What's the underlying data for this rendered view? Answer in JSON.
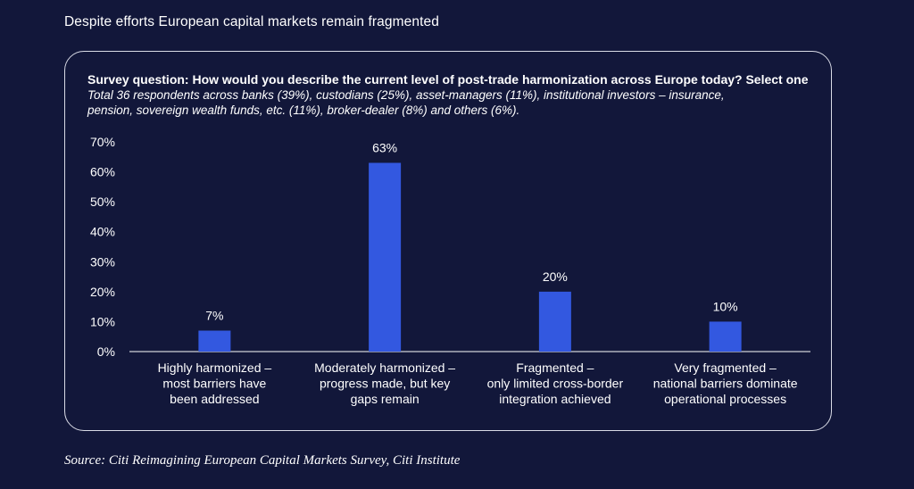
{
  "page_title": "Despite efforts European capital markets remain fragmented",
  "question": "Survey question: How would you describe the current level of post-trade harmonization across Europe today? Select one",
  "respondents_line1": "Total 36 respondents across banks (39%), custodians (25%), asset-managers (11%), institutional investors – insurance,",
  "respondents_line2": "pension, sovereign wealth funds, etc. (11%), broker-dealer (8%) and others (6%).",
  "source": "Source: Citi Reimagining European Capital Markets Survey, Citi Institute",
  "colors": {
    "background": "#12173a",
    "bar": "#3358e0",
    "axis": "#ffffff",
    "text": "#ffffff"
  },
  "chart_data": {
    "type": "bar",
    "title": "Survey question: How would you describe the current level of post-trade harmonization across Europe today? Select one",
    "xlabel": "",
    "ylabel": "",
    "ylim": [
      0,
      70
    ],
    "yticks": [
      0,
      10,
      20,
      30,
      40,
      50,
      60,
      70
    ],
    "ytick_labels": [
      "0%",
      "10%",
      "20%",
      "30%",
      "40%",
      "50%",
      "60%",
      "70%"
    ],
    "grid": false,
    "categories": [
      [
        "Highly harmonized –",
        "most barriers have",
        "been addressed"
      ],
      [
        "Moderately harmonized –",
        "progress made, but key",
        "gaps remain"
      ],
      [
        "Fragmented –",
        "only limited cross-border",
        "integration achieved"
      ],
      [
        "Very fragmented –",
        "national barriers dominate",
        "operational processes"
      ]
    ],
    "values": [
      7,
      63,
      20,
      10
    ],
    "value_labels": [
      "7%",
      "63%",
      "20%",
      "10%"
    ]
  }
}
